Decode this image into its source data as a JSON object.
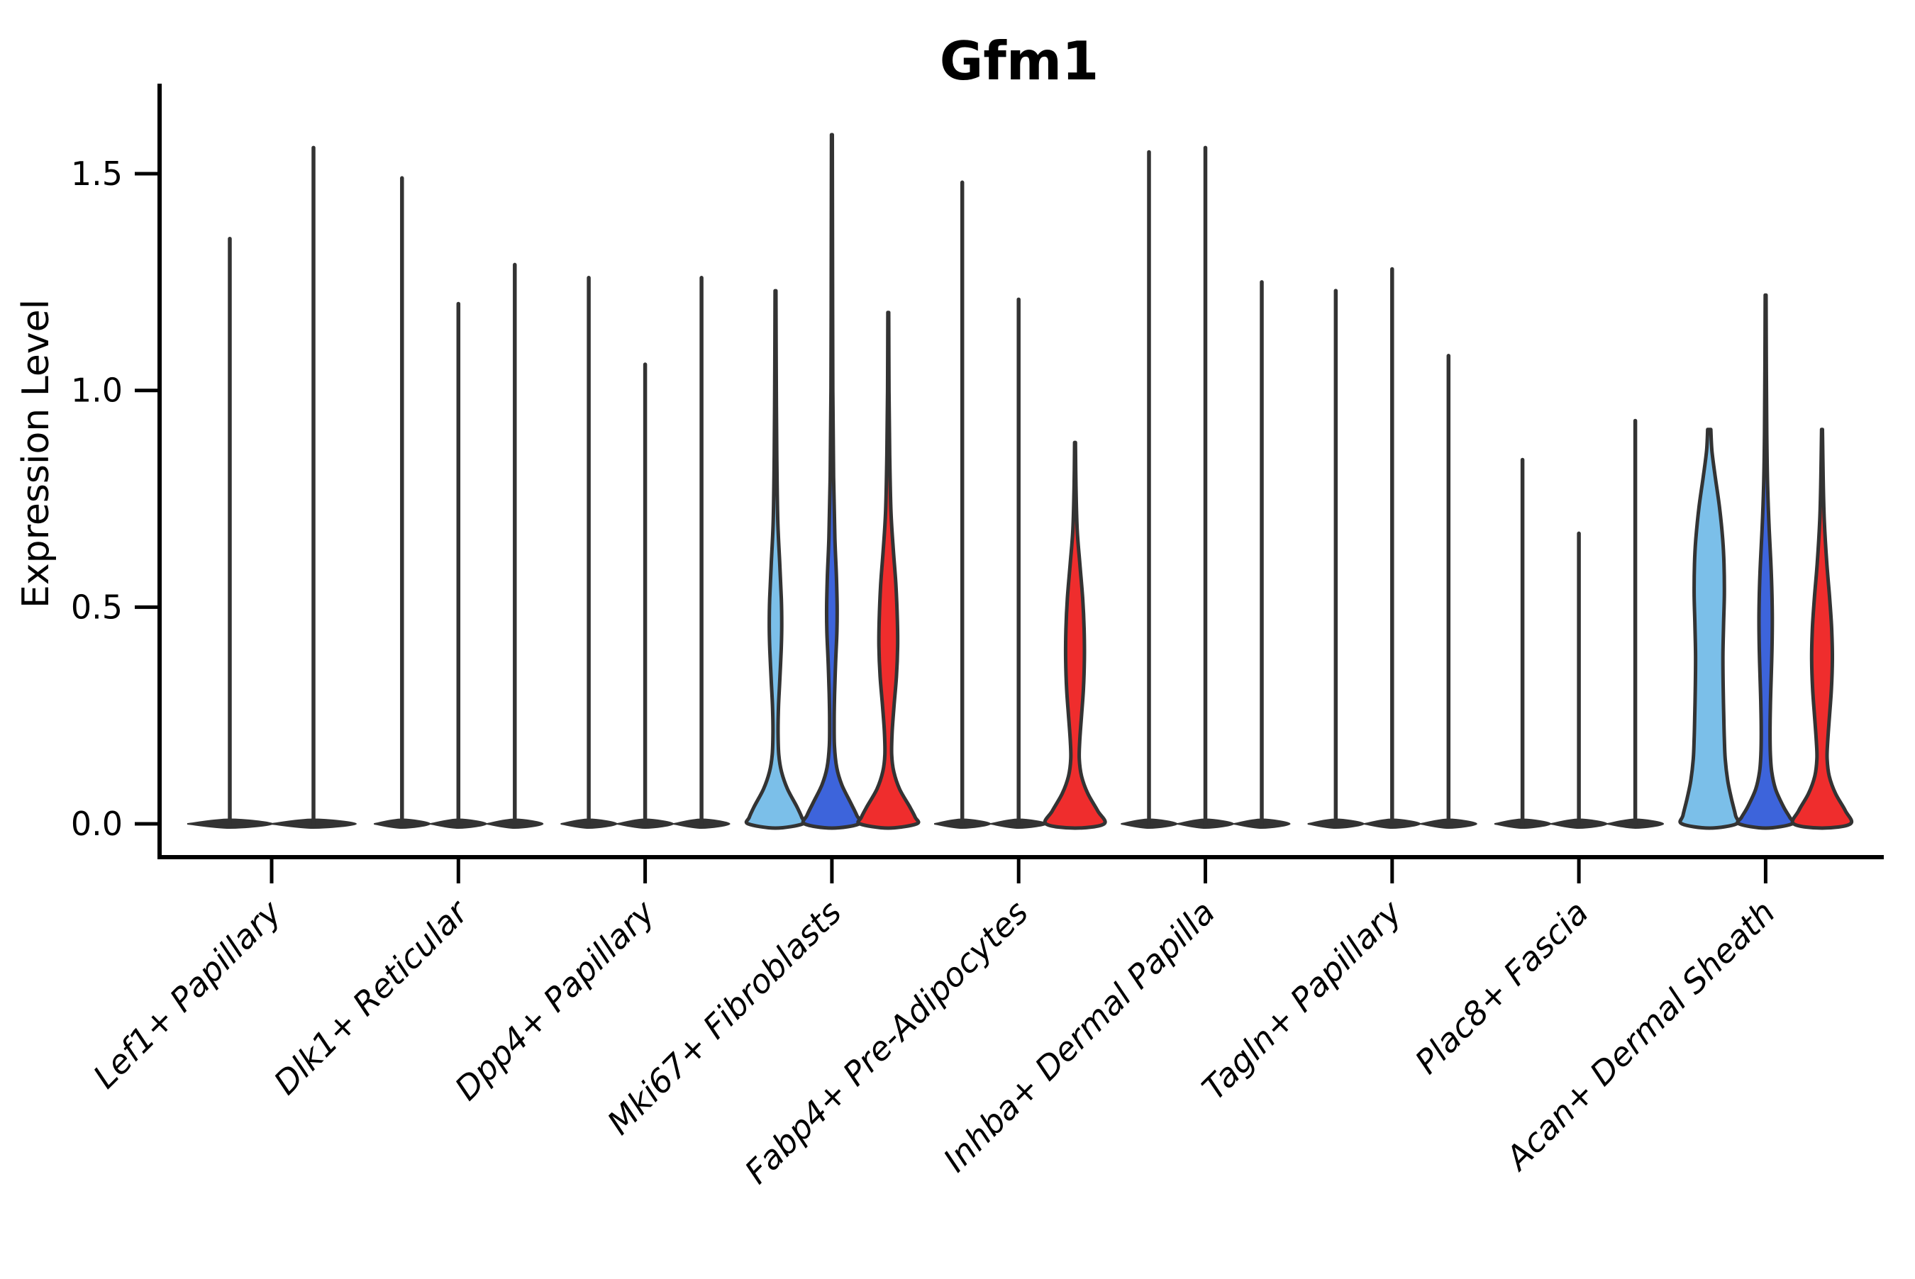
{
  "chart_data": {
    "type": "violin",
    "title": "Gfm1",
    "ylabel": "Expression Level",
    "ytick_labels": [
      "0.0",
      "0.5",
      "1.0",
      "1.5"
    ],
    "ytick_values": [
      0,
      0.5,
      1.0,
      1.5
    ],
    "ylim": [
      -0.08,
      1.72
    ],
    "grid": false,
    "legend": "none",
    "split_colors": {
      "skyblue": "#7BBFE9",
      "royalblue": "#3D64DB",
      "red": "#EF2D2D"
    },
    "outline_color": "#333333",
    "axis_color": "#000000",
    "categories": [
      "Lef1+ Papillary",
      "Dlk1+ Reticular",
      "Dpp4+ Papillary",
      "Mki67+ Fibroblasts",
      "Fabp4+ Pre-Adipocytes",
      "Inhba+ Dermal Papilla",
      "Tagln+ Papillary",
      "Plac8+ Fascia",
      "Acan+ Dermal Sheath"
    ],
    "groups": [
      {
        "category": "Lef1+ Papillary",
        "violins": [
          {
            "offset": -59,
            "max": 1.35,
            "style": "stem",
            "base_halfwidth": 60
          },
          {
            "offset": 59,
            "max": 1.56,
            "style": "stem",
            "base_halfwidth": 60
          }
        ]
      },
      {
        "category": "Dlk1+ Reticular",
        "violins": [
          {
            "offset": -79.5,
            "max": 1.49,
            "style": "stem",
            "base_halfwidth": 39.5
          },
          {
            "offset": 0,
            "max": 1.2,
            "style": "stem",
            "base_halfwidth": 39.5
          },
          {
            "offset": 79.5,
            "max": 1.29,
            "style": "stem",
            "base_halfwidth": 39.5
          }
        ]
      },
      {
        "category": "Dpp4+ Papillary",
        "violins": [
          {
            "offset": -79.5,
            "max": 1.26,
            "style": "stem",
            "base_halfwidth": 39.5
          },
          {
            "offset": 0,
            "max": 1.06,
            "style": "stem",
            "base_halfwidth": 39.5
          },
          {
            "offset": 79.5,
            "max": 1.26,
            "style": "stem",
            "base_halfwidth": 39.5
          }
        ]
      },
      {
        "category": "Mki67+ Fibroblasts",
        "violins": [
          {
            "offset": -79.5,
            "max": 1.23,
            "style": "violin",
            "fill": "skyblue",
            "profile": [
              [
                1.23,
                0.6
              ],
              [
                1.05,
                1.0
              ],
              [
                0.85,
                1.8
              ],
              [
                0.7,
                3.2
              ],
              [
                0.6,
                6.0
              ],
              [
                0.52,
                8.2
              ],
              [
                0.46,
                8.8
              ],
              [
                0.4,
                8.0
              ],
              [
                0.33,
                6.0
              ],
              [
                0.27,
                4.2
              ],
              [
                0.21,
                3.6
              ],
              [
                0.16,
                4.6
              ],
              [
                0.12,
                8.5
              ],
              [
                0.08,
                17
              ],
              [
                0.04,
                30
              ],
              [
                0.015,
                37
              ],
              [
                0,
                38.5
              ]
            ]
          },
          {
            "offset": 0,
            "max": 1.59,
            "style": "violin",
            "fill": "royalblue",
            "profile": [
              [
                1.59,
                0.6
              ],
              [
                1.3,
                0.9
              ],
              [
                1.0,
                1.3
              ],
              [
                0.8,
                2.4
              ],
              [
                0.66,
                4.2
              ],
              [
                0.57,
                6.4
              ],
              [
                0.5,
                7.4
              ],
              [
                0.44,
                7.0
              ],
              [
                0.37,
                5.2
              ],
              [
                0.3,
                3.8
              ],
              [
                0.24,
                3.2
              ],
              [
                0.18,
                3.6
              ],
              [
                0.13,
                6.8
              ],
              [
                0.09,
                14
              ],
              [
                0.05,
                26
              ],
              [
                0.02,
                35
              ],
              [
                0,
                38.5
              ]
            ]
          },
          {
            "offset": 79.5,
            "max": 1.18,
            "style": "violin",
            "fill": "red",
            "profile": [
              [
                1.18,
                0.6
              ],
              [
                1.0,
                1.0
              ],
              [
                0.85,
                2.0
              ],
              [
                0.72,
                3.8
              ],
              [
                0.63,
                7.2
              ],
              [
                0.55,
                10.8
              ],
              [
                0.47,
                12.8
              ],
              [
                0.41,
                13.2
              ],
              [
                0.34,
                11.5
              ],
              [
                0.27,
                8.0
              ],
              [
                0.21,
                5.4
              ],
              [
                0.16,
                4.8
              ],
              [
                0.12,
                7.8
              ],
              [
                0.08,
                16
              ],
              [
                0.04,
                30
              ],
              [
                0.015,
                38
              ],
              [
                0,
                40
              ]
            ]
          }
        ]
      },
      {
        "category": "Fabp4+ Pre-Adipocytes",
        "violins": [
          {
            "offset": -79.5,
            "max": 1.48,
            "style": "stem",
            "base_halfwidth": 39.5
          },
          {
            "offset": 0,
            "max": 1.21,
            "style": "stem",
            "base_halfwidth": 39.5
          },
          {
            "offset": 79.5,
            "max": 0.88,
            "style": "violin",
            "fill": "red",
            "profile": [
              [
                0.88,
                0.6
              ],
              [
                0.78,
                1.3
              ],
              [
                0.68,
                3.0
              ],
              [
                0.6,
                6.8
              ],
              [
                0.52,
                10.8
              ],
              [
                0.45,
                12.8
              ],
              [
                0.38,
                13.2
              ],
              [
                0.31,
                11.8
              ],
              [
                0.25,
                9.2
              ],
              [
                0.19,
                6.6
              ],
              [
                0.15,
                6.0
              ],
              [
                0.11,
                9.2
              ],
              [
                0.07,
                18
              ],
              [
                0.03,
                32
              ],
              [
                0,
                41
              ]
            ]
          }
        ]
      },
      {
        "category": "Inhba+ Dermal Papilla",
        "violins": [
          {
            "offset": -79.5,
            "max": 1.55,
            "style": "stem",
            "base_halfwidth": 39.5
          },
          {
            "offset": 0,
            "max": 1.56,
            "style": "stem",
            "base_halfwidth": 39.5
          },
          {
            "offset": 79.5,
            "max": 1.25,
            "style": "stem",
            "base_halfwidth": 39.5
          }
        ]
      },
      {
        "category": "Tagln+ Papillary",
        "violins": [
          {
            "offset": -79.5,
            "max": 1.23,
            "style": "stem",
            "base_halfwidth": 39.5
          },
          {
            "offset": 0,
            "max": 1.28,
            "style": "stem",
            "base_halfwidth": 39.5
          },
          {
            "offset": 79.5,
            "max": 1.08,
            "style": "stem",
            "base_halfwidth": 39.5
          }
        ]
      },
      {
        "category": "Plac8+ Fascia",
        "violins": [
          {
            "offset": -79.5,
            "max": 0.84,
            "style": "stem",
            "base_halfwidth": 39.5
          },
          {
            "offset": 0,
            "max": 0.67,
            "style": "stem",
            "base_halfwidth": 39.5
          },
          {
            "offset": 79.5,
            "max": 0.93,
            "style": "stem",
            "base_halfwidth": 39.5
          }
        ]
      },
      {
        "category": "Acan+ Dermal Sheath",
        "violins": [
          {
            "offset": -79.5,
            "max": 0.91,
            "style": "violin",
            "fill": "skyblue",
            "profile": [
              [
                0.91,
                2.2
              ],
              [
                0.86,
                3.8
              ],
              [
                0.8,
                8.5
              ],
              [
                0.73,
                14.5
              ],
              [
                0.66,
                18.8
              ],
              [
                0.6,
                20.8
              ],
              [
                0.53,
                21.3
              ],
              [
                0.46,
                20.2
              ],
              [
                0.39,
                19.3
              ],
              [
                0.32,
                19.6
              ],
              [
                0.26,
                20.3
              ],
              [
                0.2,
                21.2
              ],
              [
                0.15,
                22.5
              ],
              [
                0.1,
                26
              ],
              [
                0.06,
                31
              ],
              [
                0.02,
                37
              ],
              [
                0,
                38.5
              ]
            ]
          },
          {
            "offset": 0,
            "max": 1.22,
            "style": "violin",
            "fill": "royalblue",
            "profile": [
              [
                1.22,
                0.6
              ],
              [
                1.05,
                1.0
              ],
              [
                0.9,
                1.6
              ],
              [
                0.78,
                2.8
              ],
              [
                0.68,
                5.0
              ],
              [
                0.6,
                7.4
              ],
              [
                0.53,
                8.9
              ],
              [
                0.47,
                9.4
              ],
              [
                0.4,
                8.9
              ],
              [
                0.33,
                7.7
              ],
              [
                0.27,
                6.7
              ],
              [
                0.21,
                6.2
              ],
              [
                0.16,
                6.7
              ],
              [
                0.12,
                8.6
              ],
              [
                0.08,
                14
              ],
              [
                0.04,
                25
              ],
              [
                0.015,
                34
              ],
              [
                0,
                37.5
              ]
            ]
          },
          {
            "offset": 79.5,
            "max": 0.91,
            "style": "violin",
            "fill": "red",
            "profile": [
              [
                0.91,
                0.6
              ],
              [
                0.8,
                1.6
              ],
              [
                0.7,
                3.2
              ],
              [
                0.6,
                6.8
              ],
              [
                0.52,
                10.8
              ],
              [
                0.45,
                13.6
              ],
              [
                0.38,
                14.6
              ],
              [
                0.31,
                13.2
              ],
              [
                0.25,
                10.6
              ],
              [
                0.19,
                8.0
              ],
              [
                0.15,
                7.2
              ],
              [
                0.11,
                10.2
              ],
              [
                0.07,
                19
              ],
              [
                0.03,
                33
              ],
              [
                0,
                40
              ]
            ]
          }
        ]
      }
    ]
  }
}
